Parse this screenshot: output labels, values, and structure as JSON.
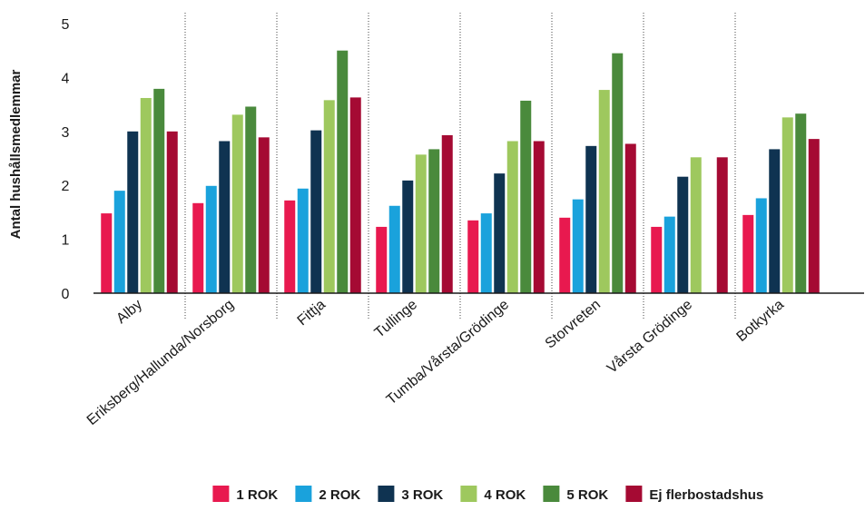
{
  "chart_data": {
    "type": "bar",
    "ylabel": "Antal hushållsmedlemmar",
    "ylim": [
      0,
      5
    ],
    "yticks": [
      "0",
      "1",
      "2",
      "3",
      "4",
      "5"
    ],
    "grid": false,
    "legend_position": "bottom",
    "categories": [
      "Alby",
      "Eriksberg/Hallunda/Norsborg",
      "Fittja",
      "Tullinge",
      "Tumba/Vårsta/Grödinge",
      "Storvreten",
      "Vårsta Grödinge",
      "Botkyrka"
    ],
    "series": [
      {
        "name": "1 ROK",
        "color": "#e8194f",
        "values": [
          1.48,
          1.67,
          1.72,
          1.23,
          1.35,
          1.4,
          1.23,
          1.45
        ]
      },
      {
        "name": "2 ROK",
        "color": "#1aa2dc",
        "values": [
          1.9,
          1.99,
          1.94,
          1.62,
          1.48,
          1.74,
          1.42,
          1.76
        ]
      },
      {
        "name": "3 ROK",
        "color": "#0f3351",
        "values": [
          3.0,
          2.82,
          3.02,
          2.09,
          2.22,
          2.73,
          2.16,
          2.67
        ]
      },
      {
        "name": "4 ROK",
        "color": "#9ec85e",
        "values": [
          3.62,
          3.31,
          3.58,
          2.57,
          2.82,
          3.77,
          2.52,
          3.26
        ]
      },
      {
        "name": "5 ROK",
        "color": "#4a8a3c",
        "values": [
          3.79,
          3.46,
          4.5,
          2.67,
          3.57,
          4.45,
          null,
          3.33
        ]
      },
      {
        "name": "Ej flerbostadshus",
        "color": "#a50a33",
        "values": [
          3.0,
          2.89,
          3.63,
          2.93,
          2.82,
          2.77,
          2.52,
          2.86
        ]
      }
    ]
  }
}
